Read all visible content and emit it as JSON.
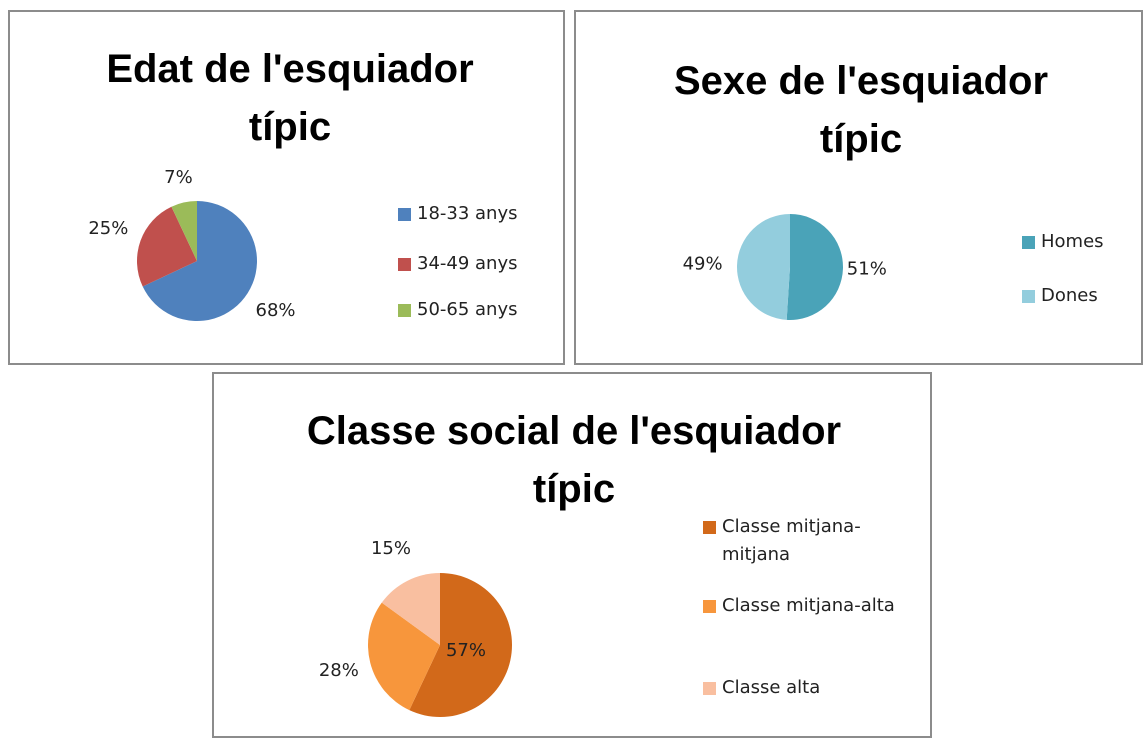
{
  "chart_data": [
    {
      "type": "pie",
      "title": "Edat de l'esquiador típic",
      "categories": [
        "18-33 anys",
        "34-49 anys",
        "50-65 anys"
      ],
      "values": [
        68,
        25,
        7
      ],
      "value_labels": [
        "68%",
        "25%",
        "7%"
      ],
      "colors": [
        "#4f81bd",
        "#c0504d",
        "#9bbb59"
      ]
    },
    {
      "type": "pie",
      "title": "Sexe de l'esquiador típic",
      "categories": [
        "Homes",
        "Dones"
      ],
      "values": [
        51,
        49
      ],
      "value_labels": [
        "51%",
        "49%"
      ],
      "colors": [
        "#4aa3b8",
        "#93cddd"
      ]
    },
    {
      "type": "pie",
      "title": "Classe social de l'esquiador típic",
      "categories": [
        "Classe mitjana-mitjana",
        "Classe mitjana-alta",
        "Classe alta"
      ],
      "values": [
        57,
        28,
        15
      ],
      "value_labels": [
        "57%",
        "28%",
        "15%"
      ],
      "colors": [
        "#d2691a",
        "#f7963c",
        "#f9bfa0"
      ]
    }
  ]
}
